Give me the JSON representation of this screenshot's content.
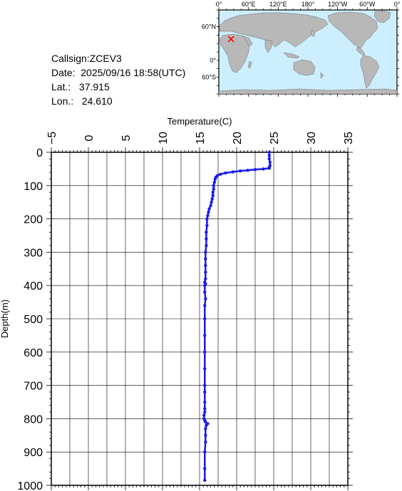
{
  "station": {
    "callsign": "Callsign:ZCEV3",
    "date": "Date:  2025/09/16 18:58(UTC)",
    "lat": "Lat.:   37.915",
    "lon": "Lon.:   24.610"
  },
  "map": {
    "top_labels": [
      "0°",
      "60°E",
      "120°E",
      "180°",
      "120°W",
      "60°W",
      "0°"
    ],
    "left_labels": [
      "60°N",
      "0°",
      "60°S"
    ],
    "ocean_color": "#cceeff",
    "land_color": "#b8b8b8",
    "marker_color": "#ff0000",
    "marker_lat": 37.915,
    "marker_lon": 24.61
  },
  "chart_data": {
    "type": "line",
    "xlabel": "Temperature(C)",
    "ylabel": "Depth(m)",
    "xlim": [
      -5,
      35
    ],
    "ylim": [
      1000,
      0
    ],
    "x_ticks": [
      -5,
      0,
      5,
      10,
      15,
      20,
      25,
      30,
      35
    ],
    "y_ticks": [
      0,
      100,
      200,
      300,
      400,
      500,
      600,
      700,
      800,
      900,
      1000
    ],
    "grid": true,
    "series_color": "#1a1aee",
    "series": [
      {
        "temperature": [
          24.4,
          24.4,
          24.4,
          24.5,
          24.5,
          24.4,
          24.4,
          23.6,
          22.5,
          21.5,
          20.5,
          19.5,
          18.5,
          17.8,
          17.4,
          17.2,
          17.1,
          17.0,
          16.9,
          16.9,
          16.8,
          16.8,
          16.7,
          16.6,
          16.5,
          16.3,
          16.2,
          16.1,
          16.0,
          16.0,
          15.9,
          15.9,
          15.9,
          15.8,
          15.8,
          15.8,
          15.8,
          15.8,
          15.7,
          15.8,
          15.7,
          15.7,
          15.8,
          15.7,
          15.7,
          15.7,
          15.7,
          15.7,
          15.7,
          15.7,
          15.7,
          15.7,
          15.7,
          15.6,
          15.6,
          15.7,
          15.8,
          16.1,
          15.9,
          15.8,
          15.8,
          15.8,
          15.7,
          15.7,
          15.7
        ],
        "depth": [
          0,
          10,
          20,
          30,
          40,
          45,
          48,
          50,
          52,
          54,
          56,
          59,
          62,
          66,
          70,
          75,
          80,
          90,
          100,
          110,
          120,
          130,
          140,
          150,
          160,
          170,
          180,
          190,
          200,
          220,
          240,
          260,
          280,
          300,
          320,
          340,
          360,
          380,
          390,
          395,
          400,
          420,
          440,
          460,
          500,
          550,
          600,
          650,
          700,
          720,
          750,
          770,
          780,
          790,
          800,
          805,
          810,
          815,
          820,
          830,
          850,
          870,
          900,
          950,
          985
        ]
      }
    ]
  }
}
